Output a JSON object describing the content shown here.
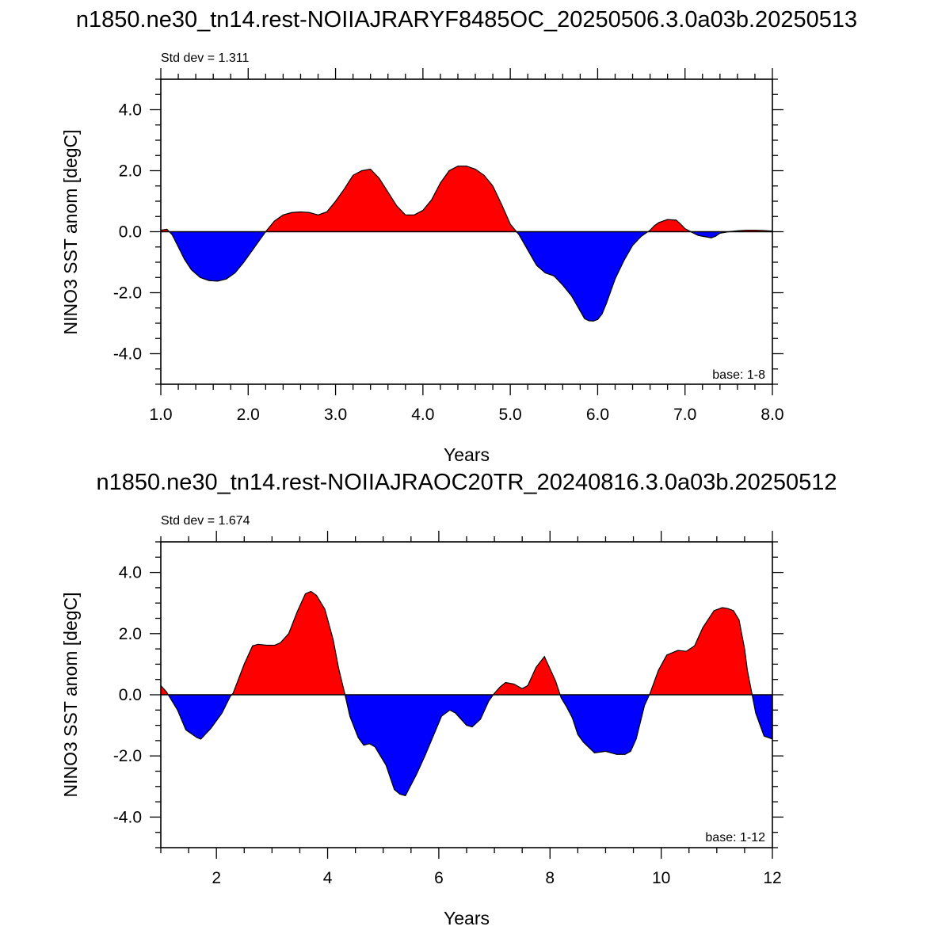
{
  "chart_data": [
    {
      "type": "area",
      "title": "n1850.ne30_tn14.rest-NOIIAJRARYF8485OC_20250506.3.0a03b.20250513",
      "xlabel": "Years",
      "ylabel": "NINO3 SST anom [degC]",
      "std_dev_label": "Std dev = 1.311",
      "base_label": "base: 1-8",
      "xlim": [
        1,
        8
      ],
      "ylim": [
        -5,
        5
      ],
      "x_ticks": [
        1,
        2,
        3,
        4,
        5,
        6,
        7,
        8
      ],
      "x_tick_labels": [
        "1.0",
        "2.0",
        "3.0",
        "4.0",
        "5.0",
        "6.0",
        "7.0",
        "8.0"
      ],
      "y_ticks": [
        -4,
        -2,
        0,
        2,
        4
      ],
      "y_tick_labels": [
        "-4.0",
        "-2.0",
        "0.0",
        "2.0",
        "4.0"
      ],
      "positive_color": "#ff0000",
      "negative_color": "#0000ff",
      "x": [
        1.0,
        1.07,
        1.13,
        1.2,
        1.27,
        1.35,
        1.45,
        1.55,
        1.65,
        1.75,
        1.85,
        1.95,
        2.05,
        2.15,
        2.2,
        2.3,
        2.4,
        2.5,
        2.6,
        2.7,
        2.8,
        2.9,
        3.0,
        3.1,
        3.2,
        3.3,
        3.4,
        3.5,
        3.6,
        3.7,
        3.8,
        3.9,
        4.0,
        4.1,
        4.2,
        4.3,
        4.4,
        4.5,
        4.6,
        4.7,
        4.8,
        4.9,
        5.0,
        5.1,
        5.2,
        5.3,
        5.4,
        5.5,
        5.6,
        5.7,
        5.8,
        5.85,
        5.9,
        5.95,
        6.0,
        6.05,
        6.1,
        6.2,
        6.3,
        6.4,
        6.5,
        6.6,
        6.65,
        6.7,
        6.8,
        6.9,
        6.95,
        7.0,
        7.1,
        7.15,
        7.2,
        7.3,
        7.35,
        7.4,
        7.5,
        7.6,
        7.7,
        7.8,
        7.9,
        8.0
      ],
      "y": [
        0.05,
        0.08,
        -0.1,
        -0.5,
        -0.9,
        -1.25,
        -1.5,
        -1.6,
        -1.62,
        -1.55,
        -1.35,
        -1.0,
        -0.6,
        -0.2,
        0.0,
        0.35,
        0.55,
        0.63,
        0.65,
        0.63,
        0.55,
        0.65,
        1.0,
        1.4,
        1.85,
        2.0,
        2.05,
        1.75,
        1.3,
        0.85,
        0.55,
        0.55,
        0.7,
        1.05,
        1.6,
        2.0,
        2.15,
        2.15,
        2.05,
        1.85,
        1.5,
        0.9,
        0.25,
        -0.1,
        -0.6,
        -1.1,
        -1.35,
        -1.45,
        -1.75,
        -2.1,
        -2.6,
        -2.85,
        -2.92,
        -2.93,
        -2.88,
        -2.7,
        -2.35,
        -1.55,
        -0.95,
        -0.45,
        -0.15,
        0.05,
        0.2,
        0.3,
        0.4,
        0.38,
        0.25,
        0.1,
        -0.05,
        -0.12,
        -0.15,
        -0.2,
        -0.15,
        -0.05,
        0.0,
        0.03,
        0.05,
        0.05,
        0.04,
        0.02
      ]
    },
    {
      "type": "area",
      "title": "n1850.ne30_tn14.rest-NOIIAJRAOC20TR_20240816.3.0a03b.20250512",
      "xlabel": "Years",
      "ylabel": "NINO3 SST anom [degC]",
      "std_dev_label": "Std dev = 1.674",
      "base_label": "base: 1-12",
      "xlim": [
        1,
        12
      ],
      "ylim": [
        -5,
        5
      ],
      "x_ticks": [
        2,
        4,
        6,
        8,
        10,
        12
      ],
      "x_tick_labels": [
        "2",
        "4",
        "6",
        "8",
        "10",
        "12"
      ],
      "y_ticks": [
        -4,
        -2,
        0,
        2,
        4
      ],
      "y_tick_labels": [
        "-4.0",
        "-2.0",
        "0.0",
        "2.0",
        "4.0"
      ],
      "positive_color": "#ff0000",
      "negative_color": "#0000ff",
      "x": [
        1.0,
        1.1,
        1.15,
        1.3,
        1.45,
        1.65,
        1.72,
        1.9,
        2.1,
        2.25,
        2.3,
        2.5,
        2.65,
        2.75,
        2.9,
        3.05,
        3.15,
        3.3,
        3.45,
        3.6,
        3.7,
        3.8,
        3.95,
        4.1,
        4.2,
        4.3,
        4.4,
        4.55,
        4.65,
        4.75,
        4.85,
        4.95,
        5.05,
        5.2,
        5.3,
        5.4,
        5.5,
        5.6,
        5.75,
        5.9,
        6.05,
        6.2,
        6.3,
        6.5,
        6.6,
        6.75,
        6.9,
        7.0,
        7.1,
        7.2,
        7.35,
        7.5,
        7.6,
        7.75,
        7.9,
        8.0,
        8.1,
        8.2,
        8.3,
        8.4,
        8.5,
        8.6,
        8.8,
        9.0,
        9.2,
        9.35,
        9.45,
        9.55,
        9.7,
        9.8,
        9.95,
        10.1,
        10.3,
        10.45,
        10.6,
        10.75,
        10.95,
        11.1,
        11.2,
        11.3,
        11.4,
        11.5,
        11.55,
        11.7,
        11.85,
        12.0
      ],
      "y": [
        0.3,
        0.1,
        -0.05,
        -0.5,
        -1.15,
        -1.4,
        -1.45,
        -1.1,
        -0.6,
        -0.05,
        0.05,
        1.0,
        1.6,
        1.65,
        1.62,
        1.62,
        1.7,
        2.0,
        2.7,
        3.3,
        3.38,
        3.25,
        2.8,
        1.8,
        0.85,
        0.1,
        -0.7,
        -1.4,
        -1.65,
        -1.6,
        -1.7,
        -2.0,
        -2.3,
        -3.1,
        -3.25,
        -3.3,
        -2.95,
        -2.6,
        -2.0,
        -1.35,
        -0.7,
        -0.5,
        -0.6,
        -1.0,
        -1.05,
        -0.8,
        -0.2,
        0.05,
        0.25,
        0.4,
        0.35,
        0.2,
        0.3,
        0.9,
        1.25,
        0.85,
        0.45,
        -0.1,
        -0.4,
        -0.75,
        -1.3,
        -1.55,
        -1.9,
        -1.85,
        -1.95,
        -1.95,
        -1.85,
        -1.45,
        -0.35,
        0.05,
        0.8,
        1.3,
        1.45,
        1.42,
        1.6,
        2.2,
        2.75,
        2.85,
        2.82,
        2.75,
        2.45,
        1.5,
        0.8,
        -0.6,
        -1.35,
        -1.45
      ]
    }
  ]
}
